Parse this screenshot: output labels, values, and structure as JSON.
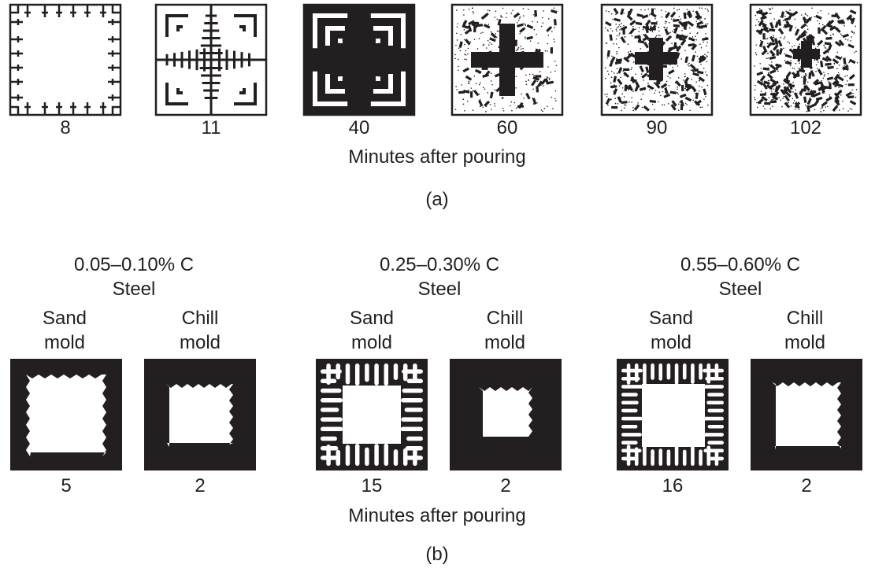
{
  "part_a": {
    "panels": [
      {
        "minutes": "8"
      },
      {
        "minutes": "11"
      },
      {
        "minutes": "40"
      },
      {
        "minutes": "60"
      },
      {
        "minutes": "90"
      },
      {
        "minutes": "102"
      }
    ],
    "axis_caption": "Minutes after pouring",
    "sublabel": "(a)"
  },
  "part_b": {
    "groups": [
      {
        "carbon": "0.05–0.10% C",
        "material": "Steel",
        "sand": {
          "line1": "Sand",
          "line2": "mold",
          "minutes": "5"
        },
        "chill": {
          "line1": "Chill",
          "line2": "mold",
          "minutes": "2"
        }
      },
      {
        "carbon": "0.25–0.30% C",
        "material": "Steel",
        "sand": {
          "line1": "Sand",
          "line2": "mold",
          "minutes": "15"
        },
        "chill": {
          "line1": "Chill",
          "line2": "mold",
          "minutes": "2"
        }
      },
      {
        "carbon": "0.55–0.60% C",
        "material": "Steel",
        "sand": {
          "line1": "Sand",
          "line2": "mold",
          "minutes": "16"
        },
        "chill": {
          "line1": "Chill",
          "line2": "mold",
          "minutes": "2"
        }
      }
    ],
    "axis_caption": "Minutes after pouring",
    "sublabel": "(b)"
  }
}
